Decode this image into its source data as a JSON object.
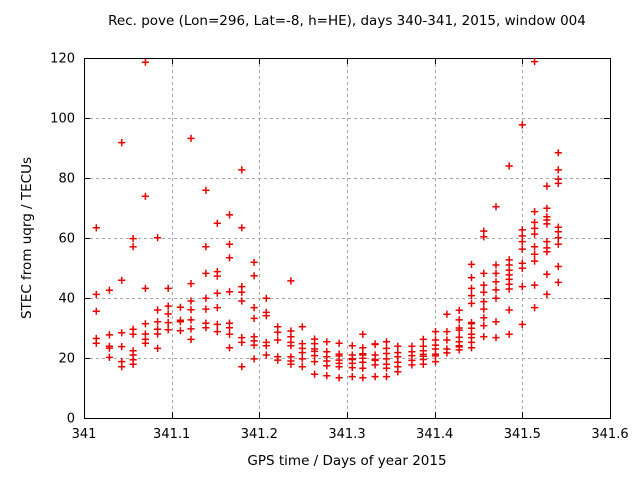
{
  "chart_data": {
    "type": "scatter",
    "title": "Rec. pove (Lon=296, Lat=-8, h=HE), days 340-341, 2015, window 004",
    "xlabel": "GPS time / Days of year 2015",
    "ylabel": "STEC from uqrg / TECUs",
    "xlim": [
      341.0,
      341.6
    ],
    "ylim": [
      0,
      120
    ],
    "xticks": [
      341.0,
      341.1,
      341.2,
      341.3,
      341.4,
      341.5,
      341.6
    ],
    "xtick_labels": [
      "341",
      "341.1",
      "341.2",
      "341.3",
      "341.4",
      "341.5",
      "341.6"
    ],
    "yticks": [
      0,
      20,
      40,
      60,
      80,
      100,
      120
    ],
    "ytick_labels": [
      "0",
      "20",
      "40",
      "60",
      "80",
      "100",
      "120"
    ],
    "grid": true,
    "legend": "none",
    "marker": "plus",
    "marker_color": "#e60000",
    "grid_color": "#a8a8a8",
    "border_color": "#000000",
    "series": [
      {
        "name": "STEC from uqrg",
        "epochs": [
          {
            "x": 341.014,
            "y": [
              63.4,
              41.2,
              35.6,
              26.5,
              24.9
            ]
          },
          {
            "x": 341.029,
            "y": [
              42.6,
              27.7,
              23.9,
              23.3,
              20.2
            ]
          },
          {
            "x": 341.043,
            "y": [
              91.8,
              45.9,
              28.4,
              23.8,
              18.8,
              17.1
            ]
          },
          {
            "x": 341.056,
            "y": [
              59.8,
              57.1,
              29.6,
              27.9,
              22.4,
              21.0,
              19.4,
              17.9
            ]
          },
          {
            "x": 341.07,
            "y": [
              118.6,
              73.9,
              43.2,
              31.4,
              28.0,
              26.2,
              24.9
            ]
          },
          {
            "x": 341.084,
            "y": [
              60.1,
              36.0,
              32.1,
              29.6,
              28.0,
              23.2
            ]
          },
          {
            "x": 341.096,
            "y": [
              43.2,
              37.3,
              34.7,
              31.8,
              29.4
            ]
          },
          {
            "x": 341.11,
            "y": [
              36.9,
              32.6,
              32.1,
              29.1
            ]
          },
          {
            "x": 341.122,
            "y": [
              93.2,
              44.8,
              39.0,
              36.1,
              32.7,
              29.7,
              26.2
            ]
          },
          {
            "x": 341.139,
            "y": [
              75.9,
              57.1,
              48.2,
              39.9,
              36.3,
              31.6,
              30.1
            ]
          },
          {
            "x": 341.152,
            "y": [
              64.9,
              48.8,
              47.3,
              41.6,
              36.8,
              31.2,
              28.8
            ]
          },
          {
            "x": 341.166,
            "y": [
              67.7,
              57.9,
              53.4,
              42.1,
              31.6,
              30.1,
              27.9,
              23.4
            ]
          },
          {
            "x": 341.18,
            "y": [
              82.7,
              63.4,
              43.8,
              41.9,
              39.0,
              26.8,
              25.2,
              17.1
            ]
          },
          {
            "x": 341.194,
            "y": [
              51.9,
              47.4,
              36.8,
              33.2,
              27.1,
              25.7,
              24.3,
              19.7
            ]
          },
          {
            "x": 341.208,
            "y": [
              39.9,
              35.2,
              34.1,
              25.2,
              24.1,
              21.0
            ]
          },
          {
            "x": 341.221,
            "y": [
              30.4,
              28.6,
              26.0,
              20.4,
              19.3
            ]
          },
          {
            "x": 341.236,
            "y": [
              45.7,
              29.0,
              27.1,
              25.2,
              24.1,
              20.4,
              19.0,
              17.9
            ]
          },
          {
            "x": 341.249,
            "y": [
              30.4,
              24.8,
              23.2,
              21.8,
              19.7,
              17.1
            ]
          },
          {
            "x": 341.263,
            "y": [
              26.3,
              24.8,
              23.0,
              22.2,
              20.8,
              18.8,
              14.6
            ]
          },
          {
            "x": 341.277,
            "y": [
              25.4,
              22.1,
              20.4,
              19.0,
              17.4,
              14.1
            ]
          },
          {
            "x": 341.291,
            "y": [
              24.9,
              21.3,
              20.7,
              19.3,
              18.2,
              17.1,
              13.4
            ]
          },
          {
            "x": 341.306,
            "y": [
              24.1,
              21.0,
              19.8,
              19.5,
              18.2,
              16.8,
              13.8
            ]
          },
          {
            "x": 341.318,
            "y": [
              27.9,
              23.4,
              21.4,
              21.0,
              19.9,
              18.6,
              16.6,
              13.4
            ]
          },
          {
            "x": 341.332,
            "y": [
              24.7,
              24.5,
              21.0,
              19.5,
              19.2,
              17.7,
              13.8
            ]
          },
          {
            "x": 341.345,
            "y": [
              25.4,
              23.2,
              21.5,
              19.7,
              17.9,
              16.6,
              13.8
            ]
          },
          {
            "x": 341.358,
            "y": [
              23.9,
              21.8,
              20.4,
              18.6,
              17.1,
              15.4
            ]
          },
          {
            "x": 341.374,
            "y": [
              23.9,
              22.1,
              20.8,
              19.2,
              17.7
            ]
          },
          {
            "x": 341.387,
            "y": [
              26.2,
              23.9,
              22.4,
              21.2,
              20.6,
              19.5,
              17.9
            ]
          },
          {
            "x": 341.401,
            "y": [
              28.8,
              26.0,
              24.3,
              23.0,
              21.3,
              20.7,
              18.8
            ]
          },
          {
            "x": 341.414,
            "y": [
              34.6,
              28.8,
              26.0,
              23.0,
              21.7
            ]
          },
          {
            "x": 341.428,
            "y": [
              35.9,
              32.7,
              30.0,
              29.3,
              26.9,
              25.4,
              24.1,
              23.7,
              22.7
            ]
          },
          {
            "x": 341.442,
            "y": [
              51.2,
              46.8,
              43.2,
              40.8,
              38.2,
              31.8,
              31.4,
              29.9,
              27.9,
              26.8,
              25.2,
              23.4
            ]
          },
          {
            "x": 341.456,
            "y": [
              62.3,
              60.4,
              48.2,
              44.3,
              41.9,
              38.8,
              36.3,
              33.4,
              30.8,
              27.1
            ]
          },
          {
            "x": 341.47,
            "y": [
              70.4,
              51.0,
              48.2,
              45.4,
              42.7,
              39.9,
              32.1,
              26.8
            ]
          },
          {
            "x": 341.485,
            "y": [
              84.0,
              52.7,
              51.0,
              49.3,
              47.7,
              46.2,
              44.6,
              43.0,
              36.0,
              27.9
            ]
          },
          {
            "x": 341.5,
            "y": [
              97.7,
              62.7,
              60.7,
              58.8,
              56.3,
              51.6,
              49.9,
              43.8,
              31.2
            ]
          },
          {
            "x": 341.514,
            "y": [
              118.8,
              68.8,
              65.2,
              63.2,
              61.3,
              57.1,
              54.6,
              52.3,
              44.3,
              36.8
            ]
          },
          {
            "x": 341.528,
            "y": [
              77.3,
              69.9,
              67.1,
              66.0,
              64.7,
              58.8,
              56.7,
              55.4,
              47.9,
              41.2
            ]
          },
          {
            "x": 341.541,
            "y": [
              88.4,
              82.7,
              79.6,
              78.2,
              63.6,
              62.1,
              60.1,
              57.9,
              50.5,
              45.2
            ]
          }
        ]
      }
    ]
  }
}
